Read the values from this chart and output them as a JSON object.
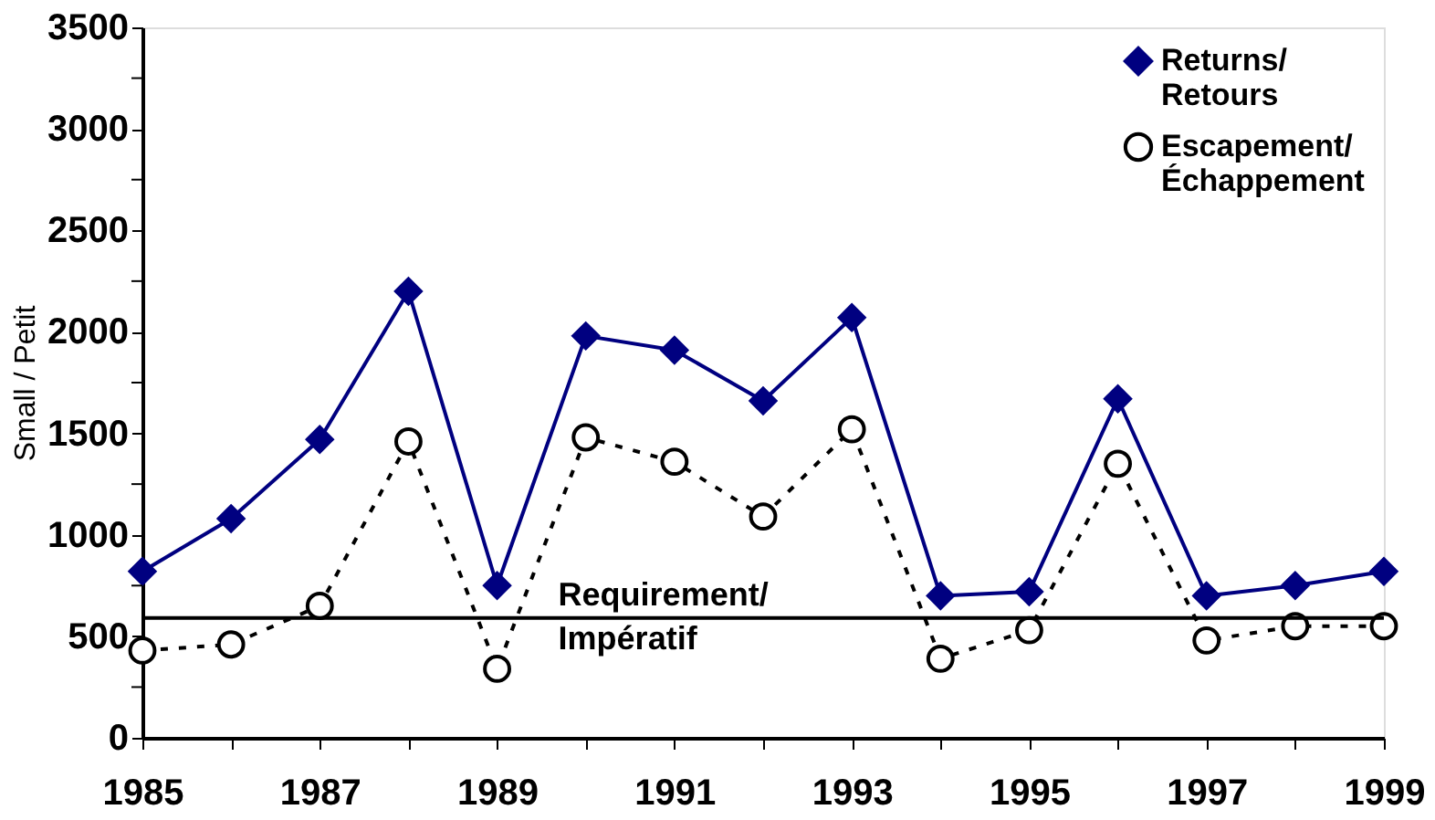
{
  "chart_data": {
    "type": "line",
    "ylabel": "Small / Petit",
    "x": [
      1985,
      1986,
      1987,
      1988,
      1989,
      1990,
      1991,
      1992,
      1993,
      1994,
      1995,
      1996,
      1997,
      1998,
      1999
    ],
    "series": [
      {
        "name": "Returns/ Retours",
        "color": "#000080",
        "marker": "diamond",
        "line_style": "solid",
        "values": [
          820,
          1080,
          1470,
          2200,
          750,
          1980,
          1910,
          1660,
          2070,
          700,
          720,
          1670,
          700,
          750,
          820
        ]
      },
      {
        "name": "Escapement/ Échappement",
        "color": "#000000",
        "marker": "circle",
        "line_style": "dashed",
        "values": [
          430,
          460,
          650,
          1460,
          340,
          1480,
          1360,
          1090,
          1520,
          390,
          530,
          1350,
          480,
          550,
          550
        ]
      }
    ],
    "ref_lines": [
      {
        "axis": "y",
        "value": 590,
        "label": "Requirement/ Impératif",
        "color": "#000000"
      }
    ],
    "xlim": [
      1985,
      1999
    ],
    "xticks": [
      1985,
      {
        "value": 1986,
        "label": null
      },
      1987,
      {
        "value": 1988,
        "label": null
      },
      1989,
      {
        "value": 1990,
        "label": null
      },
      1991,
      {
        "value": 1992,
        "label": null
      },
      1993,
      {
        "value": 1994,
        "label": null
      },
      1995,
      {
        "value": 1996,
        "label": null
      },
      1997,
      {
        "value": 1998,
        "label": null
      },
      1999
    ],
    "ylim": [
      0,
      3500
    ],
    "yticks": [
      0,
      {
        "value": 250,
        "label": null
      },
      500,
      {
        "value": 750,
        "label": null
      },
      1000,
      {
        "value": 1250,
        "label": null
      },
      1500,
      {
        "value": 1750,
        "label": null
      },
      2000,
      {
        "value": 2250,
        "label": null
      },
      2500,
      {
        "value": 2750,
        "label": null
      },
      3000,
      {
        "value": 3250,
        "label": null
      },
      3500
    ],
    "grid": false,
    "legend": "top right"
  }
}
